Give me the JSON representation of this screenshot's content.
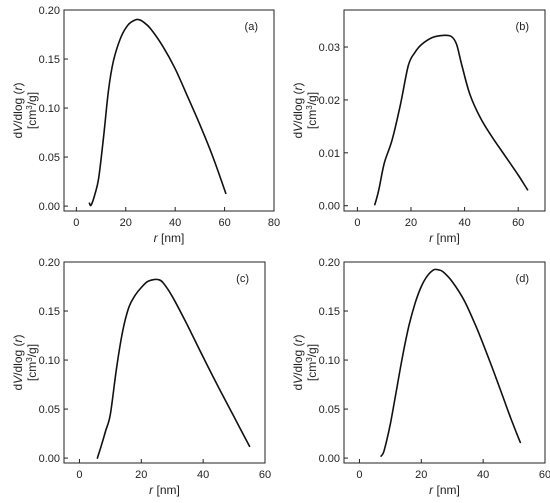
{
  "chart_data": [
    {
      "type": "line",
      "panel_label": "(a)",
      "xlabel": "r [nm]",
      "ylabel": "dV/dlog (r) [cm3/g]",
      "xlim": [
        -5,
        80
      ],
      "ylim": [
        -0.005,
        0.2
      ],
      "xticks": [
        0,
        20,
        40,
        60,
        80
      ],
      "xticklabels": [
        "0",
        "20",
        "40",
        "60",
        "80"
      ],
      "yticks": [
        0.0,
        0.05,
        0.1,
        0.15,
        0.2
      ],
      "yticklabels": [
        "0.00",
        "0.05",
        "0.10",
        "0.15",
        "0.20"
      ],
      "x": [
        5.3,
        5.8,
        6.5,
        7.5,
        9.0,
        11.0,
        13.0,
        15.0,
        18.0,
        21.0,
        24.0,
        25.5,
        27.0,
        30.0,
        35.0,
        40.0,
        45.0,
        50.0,
        55.0,
        60.5
      ],
      "y": [
        0.003,
        0.0005,
        0.004,
        0.012,
        0.028,
        0.07,
        0.118,
        0.148,
        0.172,
        0.185,
        0.19,
        0.19,
        0.188,
        0.181,
        0.163,
        0.14,
        0.112,
        0.083,
        0.052,
        0.013
      ]
    },
    {
      "type": "line",
      "panel_label": "(b)",
      "xlabel": "r [nm]",
      "ylabel": "dV/dlog (r) [cm3/g]",
      "xlim": [
        -5,
        70
      ],
      "ylim": [
        -0.001,
        0.037
      ],
      "xticks": [
        0,
        20,
        40,
        60
      ],
      "xticklabels": [
        "0",
        "20",
        "40",
        "60"
      ],
      "yticks": [
        0.0,
        0.01,
        0.02,
        0.03
      ],
      "yticklabels": [
        "0.00",
        "0.01",
        "0.02",
        "0.03"
      ],
      "x": [
        6.5,
        8.0,
        10.0,
        13.0,
        16.0,
        19.0,
        21.5,
        24.0,
        28.0,
        32.0,
        35.0,
        37.0,
        39.0,
        42.0,
        46.0,
        50.0,
        55.0,
        60.0,
        63.5
      ],
      "y": [
        0.0002,
        0.003,
        0.008,
        0.0125,
        0.019,
        0.0265,
        0.029,
        0.0305,
        0.0318,
        0.0322,
        0.032,
        0.0305,
        0.0265,
        0.021,
        0.0165,
        0.0132,
        0.0095,
        0.0058,
        0.003
      ]
    },
    {
      "type": "line",
      "panel_label": "(c)",
      "xlabel": "r [nm]",
      "ylabel": "dV/dlog (r) [cm3/g]",
      "xlim": [
        -5,
        60
      ],
      "ylim": [
        -0.005,
        0.2
      ],
      "xticks": [
        0,
        20,
        40,
        60
      ],
      "xticklabels": [
        "0",
        "20",
        "40",
        "60"
      ],
      "yticks": [
        0.0,
        0.05,
        0.1,
        0.15,
        0.2
      ],
      "yticklabels": [
        "0.00",
        "0.05",
        "0.10",
        "0.15",
        "0.20"
      ],
      "x": [
        5.8,
        7.0,
        8.5,
        10.0,
        12.0,
        14.0,
        16.0,
        18.0,
        20.0,
        22.0,
        24.0,
        25.5,
        27.0,
        30.0,
        35.0,
        40.0,
        45.0,
        50.0,
        55.0
      ],
      "y": [
        0.0,
        0.012,
        0.028,
        0.045,
        0.092,
        0.13,
        0.154,
        0.166,
        0.174,
        0.18,
        0.182,
        0.182,
        0.179,
        0.165,
        0.135,
        0.103,
        0.072,
        0.042,
        0.012
      ]
    },
    {
      "type": "line",
      "panel_label": "(d)",
      "xlabel": "r [nm]",
      "ylabel": "dV/dlog (r) [cm3/g]",
      "xlim": [
        -5,
        60
      ],
      "ylim": [
        -0.005,
        0.2
      ],
      "xticks": [
        0,
        20,
        40,
        60
      ],
      "xticklabels": [
        "0",
        "20",
        "40",
        "60"
      ],
      "yticks": [
        0.0,
        0.05,
        0.1,
        0.15,
        0.2
      ],
      "yticklabels": [
        "0.00",
        "0.05",
        "0.10",
        "0.15",
        "0.20"
      ],
      "x": [
        7.0,
        8.0,
        10.0,
        12.0,
        14.0,
        16.0,
        18.0,
        20.0,
        22.0,
        24.0,
        25.5,
        27.0,
        30.0,
        34.0,
        38.0,
        42.0,
        46.0,
        49.0,
        52.0
      ],
      "y": [
        0.002,
        0.008,
        0.035,
        0.07,
        0.105,
        0.135,
        0.158,
        0.175,
        0.186,
        0.192,
        0.192,
        0.19,
        0.18,
        0.16,
        0.132,
        0.1,
        0.066,
        0.04,
        0.016
      ]
    }
  ]
}
